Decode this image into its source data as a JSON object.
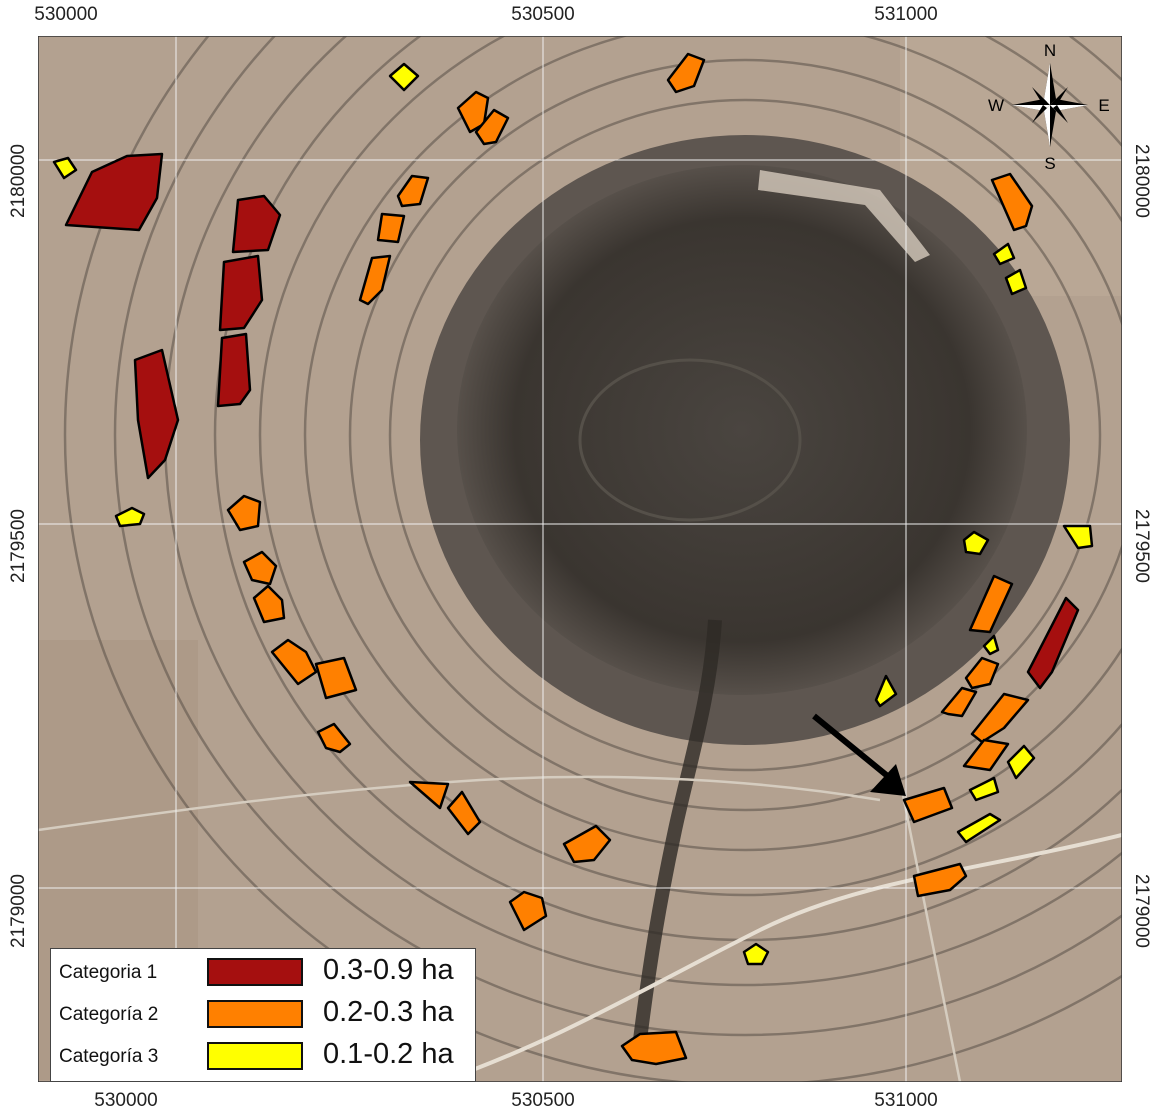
{
  "axes": {
    "top_labels": [
      "530000",
      "530500",
      "531000"
    ],
    "bottom_labels": [
      "530000",
      "530500",
      "531000"
    ],
    "left_labels": [
      "2180000",
      "2179500",
      "2179000"
    ],
    "right_labels": [
      "2180000",
      "2179500",
      "2179000"
    ]
  },
  "compass": {
    "n": "N",
    "s": "S",
    "e": "E",
    "w": "W"
  },
  "legend": {
    "items": [
      {
        "category": "Categoria 1",
        "range": "0.3-0.9 ha",
        "color": "#a50f0f"
      },
      {
        "category": "Categoría 2",
        "range": "0.2-0.3 ha",
        "color": "#ff8000"
      },
      {
        "category": "Categoría 3",
        "range": "0.1-0.2 ha",
        "color": "#ffff00"
      }
    ]
  },
  "colors": {
    "category1": "#a50f0f",
    "category2": "#ff8000",
    "category3": "#ffff00",
    "terrain": "#b3a190",
    "crater": "#3f3a35",
    "grid": "#f0f0f0"
  },
  "icons": {
    "compass": "compass-rose-icon",
    "arrow": "pointer-arrow-icon"
  }
}
